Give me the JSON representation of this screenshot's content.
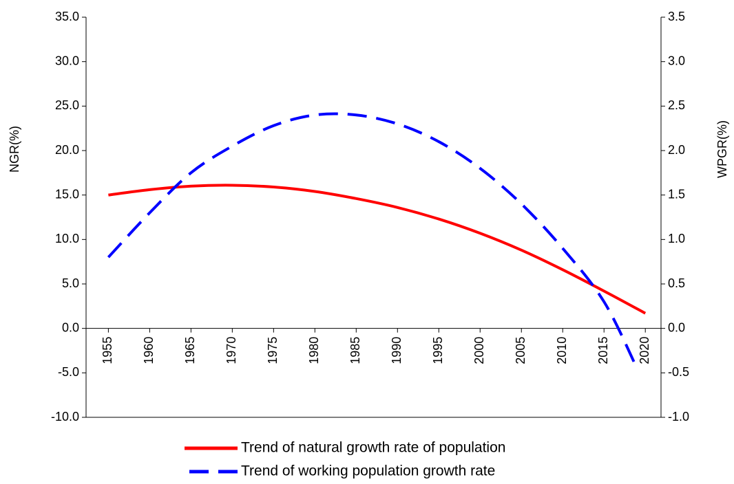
{
  "chart_data": {
    "type": "line",
    "xlim": [
      1952.3,
      2021.9
    ],
    "xticks": [
      1955,
      1960,
      1965,
      1970,
      1975,
      1980,
      1985,
      1990,
      1995,
      2000,
      2005,
      2010,
      2015,
      2020
    ],
    "ylim": [
      -10,
      35
    ],
    "yticks": [
      {
        "value": -10,
        "label": "-10.0"
      },
      {
        "value": -5,
        "label": "-5.0"
      },
      {
        "value": 0,
        "label": "0.0"
      },
      {
        "value": 5,
        "label": "5.0"
      },
      {
        "value": 10,
        "label": "10.0"
      },
      {
        "value": 15,
        "label": "15.0"
      },
      {
        "value": 20,
        "label": "20.0"
      },
      {
        "value": 25,
        "label": "25.0"
      },
      {
        "value": 30,
        "label": "30.0"
      },
      {
        "value": 35,
        "label": "35.0"
      }
    ],
    "y2lim": [
      -1,
      3.5
    ],
    "y2ticks": [
      {
        "value": -1,
        "label": "-1.0"
      },
      -0.5,
      {
        "value": 0,
        "label": "0.0"
      },
      0.5,
      {
        "value": 1,
        "label": "1.0"
      },
      1.5,
      {
        "value": 2,
        "label": "2.0"
      },
      2.5,
      {
        "value": 3,
        "label": "3.0"
      },
      3.5
    ],
    "ylabel": "NGR(%)",
    "y2label": "WPGR(%)",
    "series": [
      {
        "name": "Trend of natural growth rate of population",
        "color": "#ff0000",
        "dash": false,
        "x": [
          1955,
          1960,
          1965,
          1970,
          1975,
          1980,
          1985,
          1990,
          1995,
          2000,
          2005,
          2010,
          2015,
          2020
        ],
        "values": [
          15.0,
          15.6,
          16.0,
          16.1,
          15.9,
          15.4,
          14.6,
          13.6,
          12.3,
          10.7,
          8.8,
          6.6,
          4.2,
          1.7
        ]
      },
      {
        "name": "Trend of working population growth rate",
        "color": "#0000ff",
        "dash": true,
        "axis": "y2",
        "x": [
          1955,
          1960,
          1965,
          1970,
          1975,
          1980,
          1985,
          1990,
          1995,
          2000,
          2005,
          2010,
          2015,
          2019
        ],
        "values": [
          0.8,
          1.3,
          1.75,
          2.05,
          2.28,
          2.4,
          2.4,
          2.3,
          2.1,
          1.8,
          1.4,
          0.9,
          0.3,
          -0.45
        ]
      }
    ]
  }
}
